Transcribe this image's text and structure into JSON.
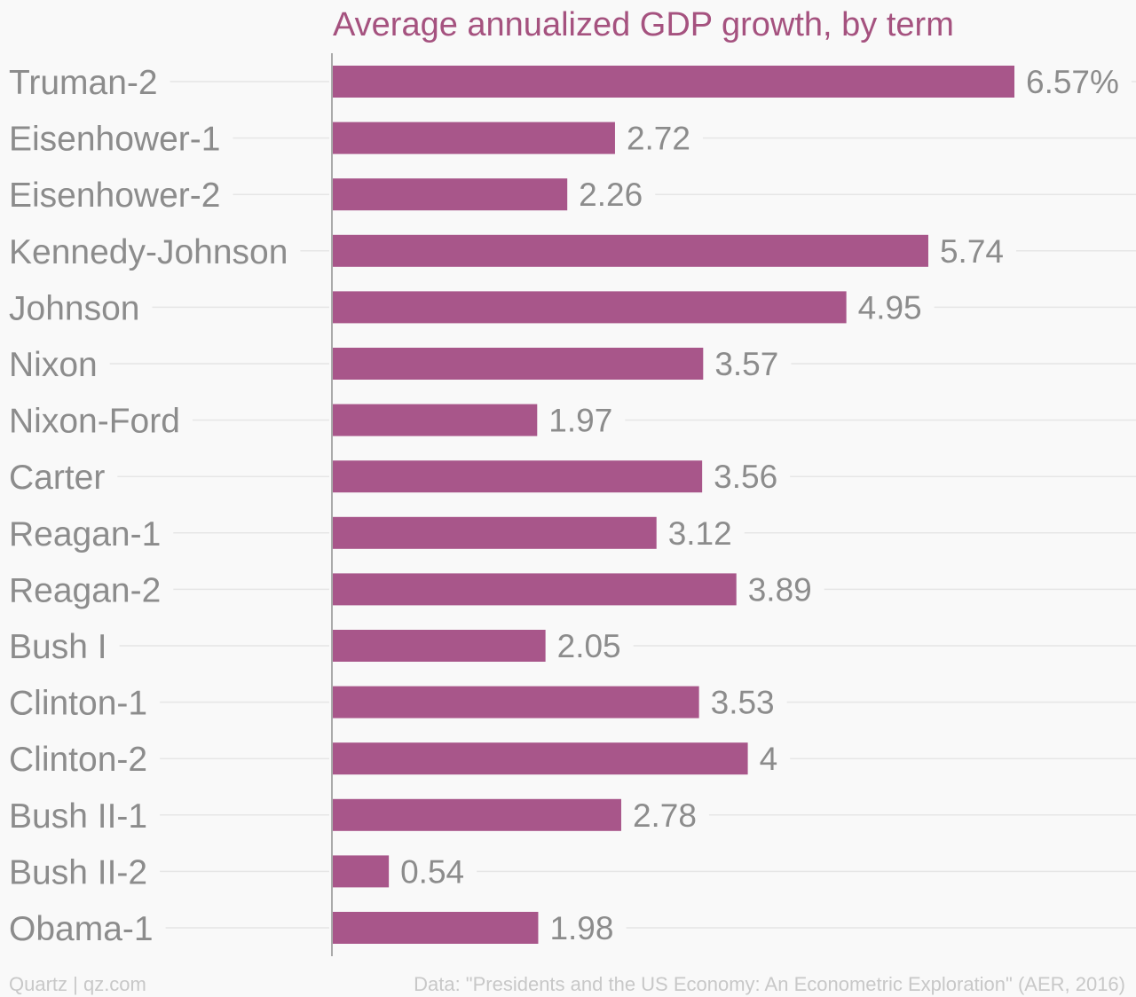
{
  "chart_data": {
    "type": "bar",
    "orientation": "horizontal",
    "title": "Average annualized GDP growth, by term",
    "categories": [
      "Truman-2",
      "Eisenhower-1",
      "Eisenhower-2",
      "Kennedy-Johnson",
      "Johnson",
      "Nixon",
      "Nixon-Ford",
      "Carter",
      "Reagan-1",
      "Reagan-2",
      "Bush I",
      "Clinton-1",
      "Clinton-2",
      "Bush II-1",
      "Bush II-2",
      "Obama-1"
    ],
    "values": [
      6.57,
      2.72,
      2.26,
      5.74,
      4.95,
      3.57,
      1.97,
      3.56,
      3.12,
      3.89,
      2.05,
      3.53,
      4,
      2.78,
      0.54,
      1.98
    ],
    "value_labels": [
      "6.57%",
      "2.72",
      "2.26",
      "5.74",
      "4.95",
      "3.57",
      "1.97",
      "3.56",
      "3.12",
      "3.89",
      "2.05",
      "3.53",
      "4",
      "2.78",
      "0.54",
      "1.98"
    ],
    "xlim": [
      0,
      6.57
    ],
    "grid": true,
    "bar_color": "#a8568a",
    "title_color": "#a5527f",
    "text_color": "#8c8c8c"
  },
  "footer": {
    "left": "Quartz | qz.com",
    "right": "Data: \"Presidents and the US Economy: An Econometric Exploration\" (AER, 2016)"
  }
}
